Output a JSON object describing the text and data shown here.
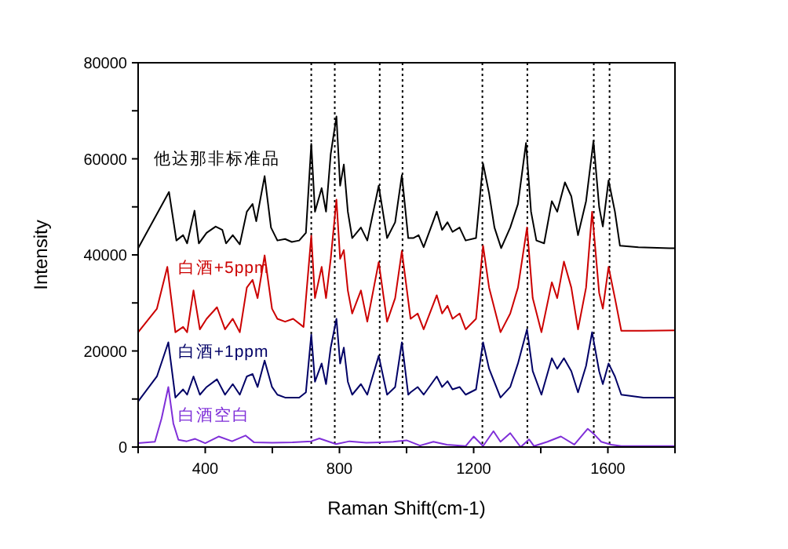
{
  "chart_data": {
    "type": "line",
    "xlabel": "Raman Shift(cm-1)",
    "ylabel": "Intensity",
    "xlim": [
      200,
      1800
    ],
    "ylim": [
      0,
      80000
    ],
    "xticks": [
      {
        "value": 200,
        "label": null
      },
      400,
      {
        "value": 600,
        "label": null
      },
      800,
      {
        "value": 1000,
        "label": null
      },
      1200,
      {
        "value": 1400,
        "label": null
      },
      1600,
      {
        "value": 1800,
        "label": null
      }
    ],
    "yticks": [
      0,
      {
        "value": 10000,
        "label": null
      },
      20000,
      {
        "value": 30000,
        "label": null
      },
      40000,
      {
        "value": 50000,
        "label": null
      },
      60000,
      {
        "value": 70000,
        "label": null
      },
      80000
    ],
    "grid": false,
    "legend": false,
    "marker": "none",
    "line_style": "solid",
    "ref_lines": [
      {
        "axis": "x",
        "value": 716,
        "color": "#000000",
        "line_style": "dotted"
      },
      {
        "axis": "x",
        "value": 786,
        "color": "#000000",
        "line_style": "dotted"
      },
      {
        "axis": "x",
        "value": 920,
        "color": "#000000",
        "line_style": "dotted"
      },
      {
        "axis": "x",
        "value": 988,
        "color": "#000000",
        "line_style": "dotted"
      },
      {
        "axis": "x",
        "value": 1226,
        "color": "#000000",
        "line_style": "dotted"
      },
      {
        "axis": "x",
        "value": 1360,
        "color": "#000000",
        "line_style": "dotted"
      },
      {
        "axis": "x",
        "value": 1558,
        "color": "#000000",
        "line_style": "dotted"
      },
      {
        "axis": "x",
        "value": 1605,
        "color": "#000000",
        "line_style": "dotted"
      }
    ],
    "series": [
      {
        "name": "他达那非标准品",
        "color": "#000000",
        "x": [
          200,
          292,
          314,
          334,
          346,
          368,
          381,
          404,
          431,
          451,
          462,
          482,
          503,
          524,
          541,
          552,
          577,
          596,
          615,
          638,
          658,
          680,
          700,
          716,
          727,
          747,
          760,
          774,
          791,
          802,
          813,
          825,
          838,
          864,
          883,
          917,
          942,
          966,
          986,
          1005,
          1020,
          1036,
          1051,
          1090,
          1106,
          1122,
          1137,
          1158,
          1176,
          1207,
          1228,
          1246,
          1262,
          1282,
          1309,
          1332,
          1356,
          1371,
          1387,
          1410,
          1433,
          1449,
          1472,
          1491,
          1511,
          1535,
          1557,
          1574,
          1585,
          1602,
          1621,
          1636,
          1691,
          1784,
          1800
        ],
        "values": [
          41400,
          53100,
          43000,
          44100,
          42400,
          49200,
          42400,
          44600,
          45900,
          45200,
          42400,
          44100,
          42200,
          49000,
          50600,
          47000,
          56400,
          45700,
          43000,
          43300,
          42700,
          43000,
          44600,
          63100,
          49000,
          53900,
          49000,
          61000,
          68800,
          54400,
          58800,
          49000,
          43500,
          45700,
          43000,
          54400,
          43500,
          46800,
          56600,
          43500,
          43500,
          44100,
          41600,
          49000,
          45200,
          46800,
          44800,
          45700,
          43000,
          43500,
          59000,
          52800,
          45700,
          41400,
          45700,
          50600,
          63300,
          49000,
          43000,
          42400,
          51200,
          49000,
          55100,
          52200,
          44100,
          51200,
          63700,
          50000,
          45900,
          55500,
          49000,
          41900,
          41600,
          41400,
          41400
        ]
      },
      {
        "name": "白酒+5ppm",
        "color": "#cc0000",
        "x": [
          200,
          256,
          287,
          311,
          334,
          346,
          365,
          384,
          404,
          435,
          459,
          482,
          503,
          524,
          541,
          556,
          577,
          599,
          615,
          638,
          662,
          693,
          716,
          727,
          747,
          760,
          774,
          791,
          802,
          813,
          825,
          838,
          864,
          883,
          917,
          942,
          966,
          986,
          1012,
          1033,
          1051,
          1090,
          1106,
          1122,
          1137,
          1158,
          1176,
          1207,
          1228,
          1246,
          1280,
          1309,
          1332,
          1359,
          1376,
          1402,
          1433,
          1449,
          1469,
          1491,
          1511,
          1535,
          1553,
          1574,
          1585,
          1602,
          1621,
          1640,
          1706,
          1800
        ],
        "values": [
          23900,
          28800,
          37500,
          23900,
          25000,
          23900,
          32600,
          24500,
          26700,
          29100,
          24500,
          26700,
          23900,
          33200,
          34800,
          31000,
          39900,
          28800,
          26700,
          26100,
          26700,
          25000,
          44000,
          31000,
          37500,
          31000,
          39200,
          51500,
          39200,
          41000,
          32600,
          27800,
          32600,
          26100,
          38500,
          26100,
          31000,
          40800,
          26700,
          27800,
          24500,
          31600,
          27800,
          29400,
          26700,
          27800,
          24500,
          26700,
          41900,
          33200,
          23900,
          27800,
          33200,
          45700,
          31000,
          23900,
          34300,
          31000,
          38600,
          33200,
          24500,
          33200,
          49000,
          32100,
          28800,
          37500,
          31000,
          24200,
          24200,
          24300
        ]
      },
      {
        "name": "白酒+1ppm",
        "color": "#000066",
        "x": [
          200,
          256,
          290,
          311,
          334,
          346,
          365,
          384,
          404,
          435,
          459,
          482,
          503,
          524,
          541,
          556,
          577,
          599,
          615,
          638,
          680,
          700,
          716,
          727,
          747,
          760,
          774,
          791,
          802,
          813,
          825,
          838,
          864,
          883,
          917,
          942,
          966,
          986,
          1005,
          1012,
          1033,
          1051,
          1090,
          1106,
          1122,
          1137,
          1158,
          1176,
          1207,
          1228,
          1246,
          1280,
          1309,
          1332,
          1359,
          1376,
          1402,
          1433,
          1449,
          1469,
          1491,
          1511,
          1535,
          1553,
          1574,
          1585,
          1602,
          1621,
          1640,
          1706,
          1800
        ],
        "values": [
          9500,
          14700,
          21800,
          10300,
          12000,
          10900,
          14700,
          10900,
          12500,
          14100,
          10900,
          13100,
          10900,
          14700,
          15200,
          12500,
          18000,
          12500,
          10900,
          10300,
          10300,
          11400,
          23400,
          13600,
          17400,
          13100,
          20700,
          26700,
          17400,
          20700,
          13600,
          10900,
          13100,
          10900,
          19000,
          10900,
          12500,
          21800,
          10900,
          11400,
          12500,
          10900,
          14700,
          12500,
          13700,
          12000,
          12500,
          10900,
          12000,
          21800,
          16300,
          10300,
          12500,
          17400,
          24500,
          15800,
          10900,
          18500,
          16300,
          18500,
          15800,
          11400,
          16900,
          23900,
          15800,
          13100,
          17400,
          14700,
          10900,
          10300,
          10300
        ]
      },
      {
        "name": "白酒空白",
        "color": "#7f2fd8",
        "x": [
          200,
          250,
          270,
          290,
          305,
          320,
          345,
          370,
          400,
          440,
          480,
          520,
          545,
          600,
          660,
          716,
          740,
          790,
          830,
          880,
          920,
          960,
          1000,
          1040,
          1080,
          1120,
          1176,
          1200,
          1228,
          1259,
          1280,
          1309,
          1340,
          1365,
          1380,
          1420,
          1460,
          1500,
          1540,
          1560,
          1580,
          1610,
          1640,
          1700,
          1800
        ],
        "values": [
          800,
          1100,
          6000,
          12500,
          4900,
          1500,
          1200,
          1700,
          800,
          2200,
          1200,
          2400,
          1000,
          900,
          1000,
          1200,
          1800,
          600,
          1200,
          900,
          1000,
          1100,
          1400,
          300,
          1100,
          500,
          200,
          2200,
          200,
          3300,
          1100,
          2900,
          0,
          1600,
          200,
          1100,
          2200,
          500,
          3800,
          2600,
          1100,
          500,
          200,
          200,
          200
        ]
      }
    ]
  }
}
